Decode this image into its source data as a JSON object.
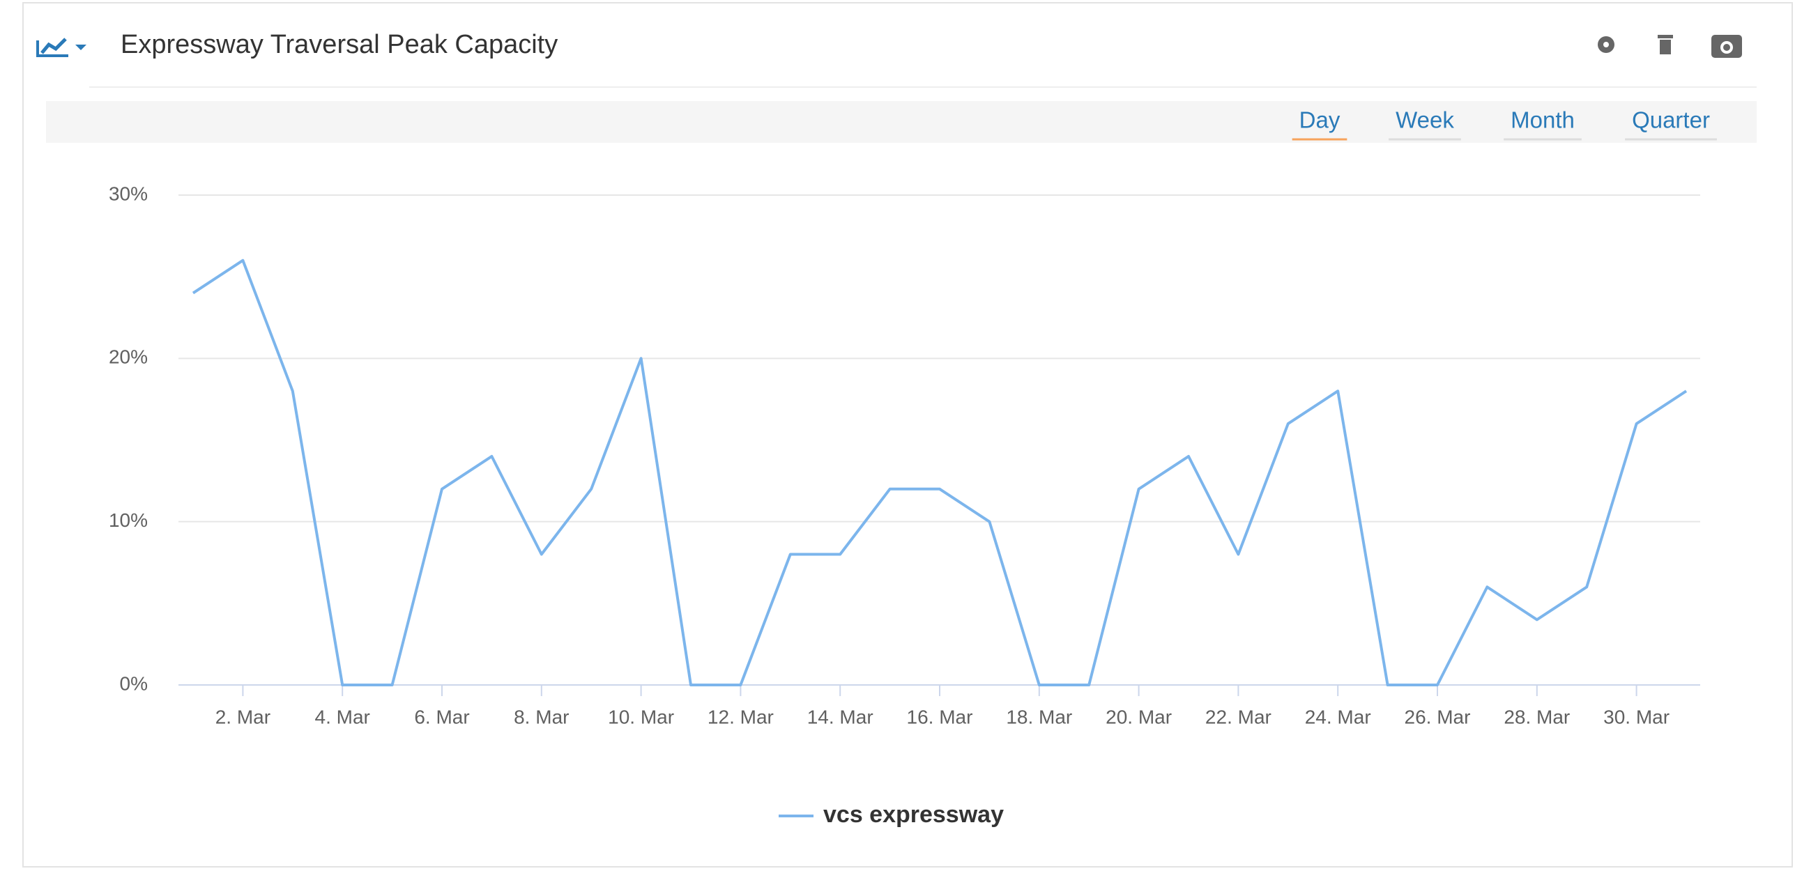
{
  "chart_data": {
    "type": "line",
    "title": "Expressway Traversal Peak Capacity",
    "periods": [
      "Day",
      "Week",
      "Month",
      "Quarter"
    ],
    "categories": [
      null,
      "2. Mar",
      null,
      "4. Mar",
      null,
      "6. Mar",
      null,
      "8. Mar",
      null,
      "10. Mar",
      null,
      "12. Mar",
      null,
      "14. Mar",
      null,
      "16. Mar",
      null,
      "18. Mar",
      null,
      "20. Mar",
      null,
      "22. Mar",
      null,
      "24. Mar",
      null,
      "26. Mar",
      null,
      "28. Mar",
      null,
      "30. Mar",
      null
    ],
    "series": [
      {
        "name": "vcs expressway",
        "color": "#7cb5ec",
        "values": [
          24,
          26,
          18,
          0,
          0,
          12,
          14,
          8,
          12,
          20,
          0,
          0,
          8,
          8,
          12,
          12,
          10,
          0,
          0,
          12,
          14,
          8,
          16,
          18,
          0,
          0,
          6,
          4,
          6,
          16,
          18
        ]
      }
    ],
    "ylim": [
      0,
      30
    ],
    "yticks": [
      {
        "value": 0,
        "label": "0%"
      },
      {
        "value": 10,
        "label": "10%"
      },
      {
        "value": 20,
        "label": "20%"
      },
      {
        "value": 30,
        "label": "30%"
      }
    ],
    "grid": true
  }
}
